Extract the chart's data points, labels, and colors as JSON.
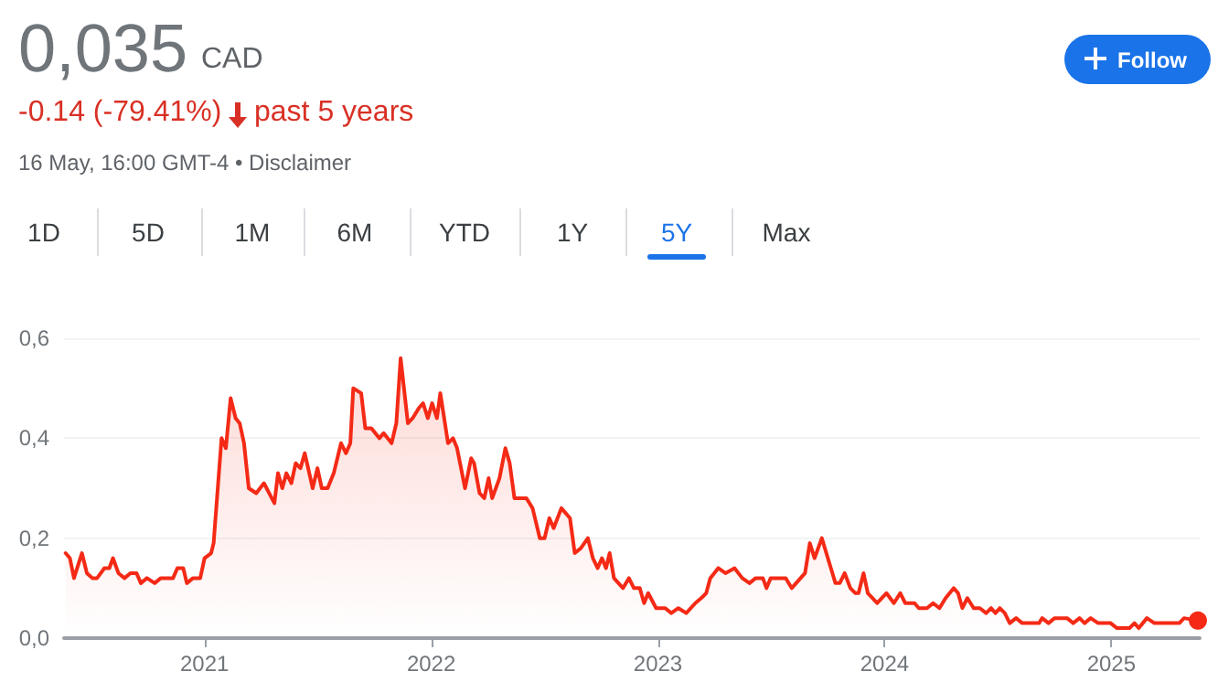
{
  "chart_data": {
    "type": "area",
    "title": "0,035",
    "annotations": [
      "CAD",
      "-0.14 (-79.41%)",
      "past 5 years",
      "16 May, 16:00 GMT-4 • Disclaimer",
      "Follow",
      "1D",
      "5D",
      "1M",
      "6M",
      "YTD",
      "1Y",
      "5Y",
      "Max"
    ],
    "series": [
      {
        "color": "#f42a16",
        "x": [
          2020.387,
          2020.406,
          2020.424,
          2020.459,
          2020.481,
          2020.505,
          2020.526,
          2020.558,
          2020.58,
          2020.596,
          2020.62,
          2020.647,
          2020.673,
          2020.7,
          2020.719,
          2020.746,
          2020.78,
          2020.807,
          2020.861,
          2020.88,
          2020.906,
          2020.922,
          2020.949,
          2020.981,
          2021.0,
          2021.029,
          2021.04,
          2021.075,
          2021.094,
          2021.115,
          2021.137,
          2021.155,
          2021.174,
          2021.195,
          2021.228,
          2021.262,
          2021.308,
          2021.324,
          2021.343,
          2021.361,
          2021.383,
          2021.402,
          2021.423,
          2021.442,
          2021.477,
          2021.498,
          2021.517,
          2021.543,
          2021.57,
          2021.602,
          2021.624,
          2021.643,
          2021.656,
          2021.691,
          2021.709,
          2021.736,
          2021.771,
          2021.79,
          2021.825,
          2021.846,
          2021.865,
          2021.897,
          2021.918,
          2021.945,
          2021.964,
          2021.985,
          2022.004,
          2022.025,
          2022.04,
          2022.074,
          2022.096,
          2022.114,
          2022.149,
          2022.176,
          2022.189,
          2022.213,
          2022.234,
          2022.253,
          2022.269,
          2022.301,
          2022.327,
          2022.346,
          2022.367,
          2022.394,
          2022.42,
          2022.447,
          2022.479,
          2022.5,
          2022.521,
          2022.54,
          2022.574,
          2022.612,
          2022.633,
          2022.66,
          2022.691,
          2022.713,
          2022.734,
          2022.753,
          2022.771,
          2022.787,
          2022.806,
          2022.846,
          2022.872,
          2022.894,
          2022.92,
          2022.939,
          2022.957,
          2022.992,
          2023.032,
          2023.059,
          2023.09,
          2023.125,
          2023.165,
          2023.191,
          2023.213,
          2023.231,
          2023.266,
          2023.298,
          2023.338,
          2023.372,
          2023.404,
          2023.431,
          2023.463,
          2023.479,
          2023.497,
          2023.537,
          2023.564,
          2023.59,
          2023.649,
          2023.67,
          2023.691,
          2023.723,
          2023.763,
          2023.783,
          2023.802,
          2023.824,
          2023.849,
          2023.871,
          2023.885,
          2023.907,
          2023.926,
          2023.967,
          2024.008,
          2024.041,
          2024.069,
          2024.091,
          2024.132,
          2024.151,
          2024.187,
          2024.214,
          2024.242,
          2024.269,
          2024.305,
          2024.324,
          2024.343,
          2024.365,
          2024.393,
          2024.42,
          2024.448,
          2024.47,
          2024.489,
          2024.508,
          2024.53,
          2024.552,
          2024.58,
          2024.607,
          2024.681,
          2024.695,
          2024.723,
          2024.75,
          2024.805,
          2024.832,
          2024.86,
          2024.882,
          2024.909,
          2024.942,
          2024.997,
          2025.025,
          2025.08,
          2025.102,
          2025.121,
          2025.157,
          2025.19,
          2025.3,
          2025.321,
          2025.382
        ],
        "values": [
          0.17,
          0.16,
          0.12,
          0.17,
          0.13,
          0.12,
          0.12,
          0.14,
          0.14,
          0.16,
          0.13,
          0.12,
          0.13,
          0.13,
          0.11,
          0.12,
          0.11,
          0.12,
          0.12,
          0.14,
          0.14,
          0.11,
          0.12,
          0.12,
          0.16,
          0.17,
          0.19,
          0.4,
          0.38,
          0.48,
          0.44,
          0.43,
          0.39,
          0.3,
          0.29,
          0.31,
          0.27,
          0.33,
          0.3,
          0.33,
          0.31,
          0.35,
          0.34,
          0.37,
          0.3,
          0.34,
          0.3,
          0.3,
          0.33,
          0.39,
          0.37,
          0.39,
          0.5,
          0.49,
          0.42,
          0.42,
          0.4,
          0.41,
          0.39,
          0.43,
          0.56,
          0.43,
          0.44,
          0.46,
          0.47,
          0.44,
          0.47,
          0.44,
          0.49,
          0.39,
          0.4,
          0.38,
          0.3,
          0.36,
          0.35,
          0.29,
          0.28,
          0.32,
          0.28,
          0.32,
          0.38,
          0.35,
          0.28,
          0.28,
          0.28,
          0.26,
          0.2,
          0.2,
          0.24,
          0.22,
          0.26,
          0.24,
          0.17,
          0.18,
          0.2,
          0.16,
          0.14,
          0.16,
          0.14,
          0.17,
          0.12,
          0.1,
          0.12,
          0.1,
          0.1,
          0.07,
          0.09,
          0.06,
          0.06,
          0.05,
          0.06,
          0.05,
          0.07,
          0.08,
          0.09,
          0.12,
          0.14,
          0.13,
          0.14,
          0.12,
          0.11,
          0.12,
          0.12,
          0.1,
          0.12,
          0.12,
          0.12,
          0.1,
          0.13,
          0.19,
          0.16,
          0.2,
          0.14,
          0.11,
          0.11,
          0.13,
          0.1,
          0.09,
          0.09,
          0.13,
          0.09,
          0.07,
          0.09,
          0.07,
          0.09,
          0.07,
          0.07,
          0.06,
          0.06,
          0.07,
          0.06,
          0.08,
          0.1,
          0.09,
          0.06,
          0.08,
          0.06,
          0.06,
          0.05,
          0.06,
          0.05,
          0.06,
          0.05,
          0.03,
          0.04,
          0.03,
          0.03,
          0.04,
          0.03,
          0.04,
          0.04,
          0.03,
          0.04,
          0.03,
          0.04,
          0.03,
          0.03,
          0.02,
          0.02,
          0.03,
          0.02,
          0.04,
          0.03,
          0.03,
          0.04,
          0.035
        ]
      }
    ],
    "xlim": [
      2020.38,
      2025.39
    ],
    "xticks": [
      2021,
      2022,
      2023,
      2024,
      2025
    ],
    "ylim": [
      0,
      0.6
    ],
    "yticks": [
      {
        "value": 0,
        "label": "0,0"
      },
      {
        "value": 0.2,
        "label": "0,2"
      },
      {
        "value": 0.4,
        "label": "0,4"
      },
      {
        "value": 0.6,
        "label": "0,6"
      }
    ],
    "grid": "y",
    "marker": "none",
    "line_style": "solid"
  }
}
